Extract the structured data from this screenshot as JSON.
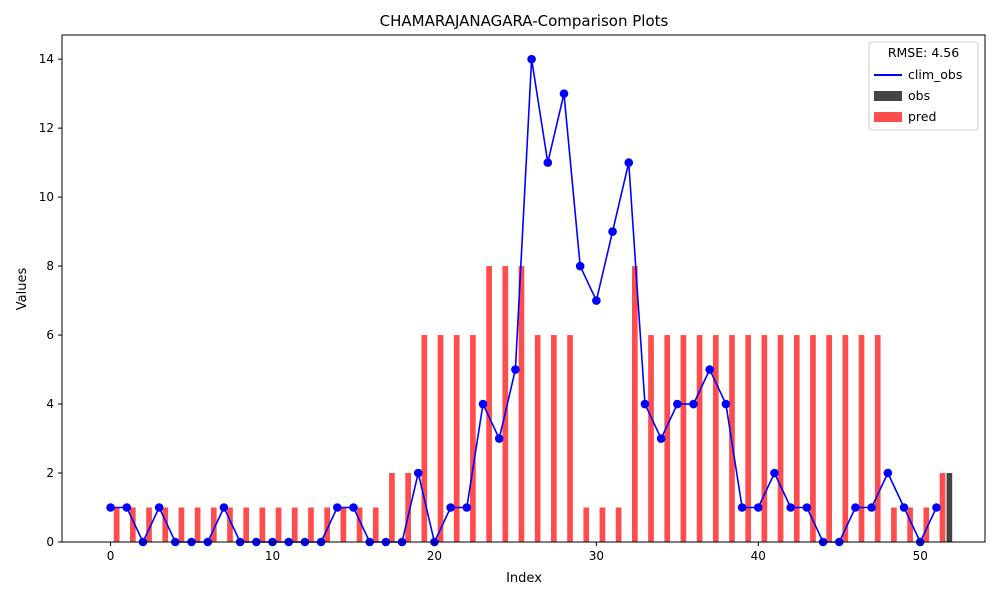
{
  "chart_data": {
    "type": "bar",
    "title": "CHAMARAJANAGARA-Comparison Plots",
    "xlabel": "Index",
    "ylabel": "Values",
    "xlim": [
      -3.0,
      54.0
    ],
    "ylim": [
      0,
      14.7
    ],
    "xticks": [
      0,
      10,
      20,
      30,
      40,
      50
    ],
    "yticks": [
      0,
      2,
      4,
      6,
      8,
      10,
      12,
      14
    ],
    "legend": {
      "title": "RMSE: 4.56",
      "position": "top-right",
      "entries": [
        {
          "label": "clim_obs",
          "kind": "line",
          "color": "#0000ff"
        },
        {
          "label": "obs",
          "kind": "bar",
          "color": "#444444"
        },
        {
          "label": "pred",
          "kind": "bar",
          "color": "#ff4c4c"
        }
      ]
    },
    "x": [
      0,
      1,
      2,
      3,
      4,
      5,
      6,
      7,
      8,
      9,
      10,
      11,
      12,
      13,
      14,
      15,
      16,
      17,
      18,
      19,
      20,
      21,
      22,
      23,
      24,
      25,
      26,
      27,
      28,
      29,
      30,
      31,
      32,
      33,
      34,
      35,
      36,
      37,
      38,
      39,
      40,
      41,
      42,
      43,
      44,
      45,
      46,
      47,
      48,
      49,
      50,
      51
    ],
    "series": [
      {
        "name": "clim_obs",
        "kind": "line",
        "color": "#0000ff",
        "values": [
          1,
          1,
          0,
          1,
          0,
          0,
          0,
          1,
          0,
          0,
          0,
          0,
          0,
          0,
          1,
          1,
          0,
          0,
          0,
          2,
          0,
          1,
          1,
          4,
          3,
          5,
          14,
          11,
          13,
          8,
          7,
          9,
          11,
          4,
          3,
          4,
          4,
          5,
          4,
          1,
          1,
          2,
          1,
          1,
          0,
          0,
          1,
          1,
          2,
          1,
          0,
          1
        ]
      },
      {
        "name": "obs",
        "kind": "bar",
        "color": "#444444",
        "values": [
          0,
          0,
          0,
          0,
          0,
          0,
          0,
          0,
          0,
          0,
          0,
          0,
          0,
          0,
          0,
          0,
          0,
          0,
          0,
          0,
          0,
          0,
          0,
          0,
          0,
          0,
          0,
          0,
          0,
          0,
          0,
          0,
          0,
          0,
          0,
          0,
          0,
          0,
          0,
          0,
          0,
          0,
          0,
          0,
          0,
          0,
          0,
          0,
          0,
          0,
          0,
          2
        ]
      },
      {
        "name": "pred",
        "kind": "bar",
        "color": "#ff4c4c",
        "values": [
          1,
          1,
          1,
          1,
          1,
          1,
          1,
          1,
          1,
          1,
          1,
          1,
          1,
          1,
          1,
          1,
          1,
          2,
          2,
          6,
          6,
          6,
          6,
          8,
          8,
          8,
          6,
          6,
          6,
          1,
          1,
          1,
          8,
          6,
          6,
          6,
          6,
          6,
          6,
          6,
          6,
          6,
          6,
          6,
          6,
          6,
          6,
          6,
          1,
          1,
          1,
          2
        ]
      }
    ]
  }
}
